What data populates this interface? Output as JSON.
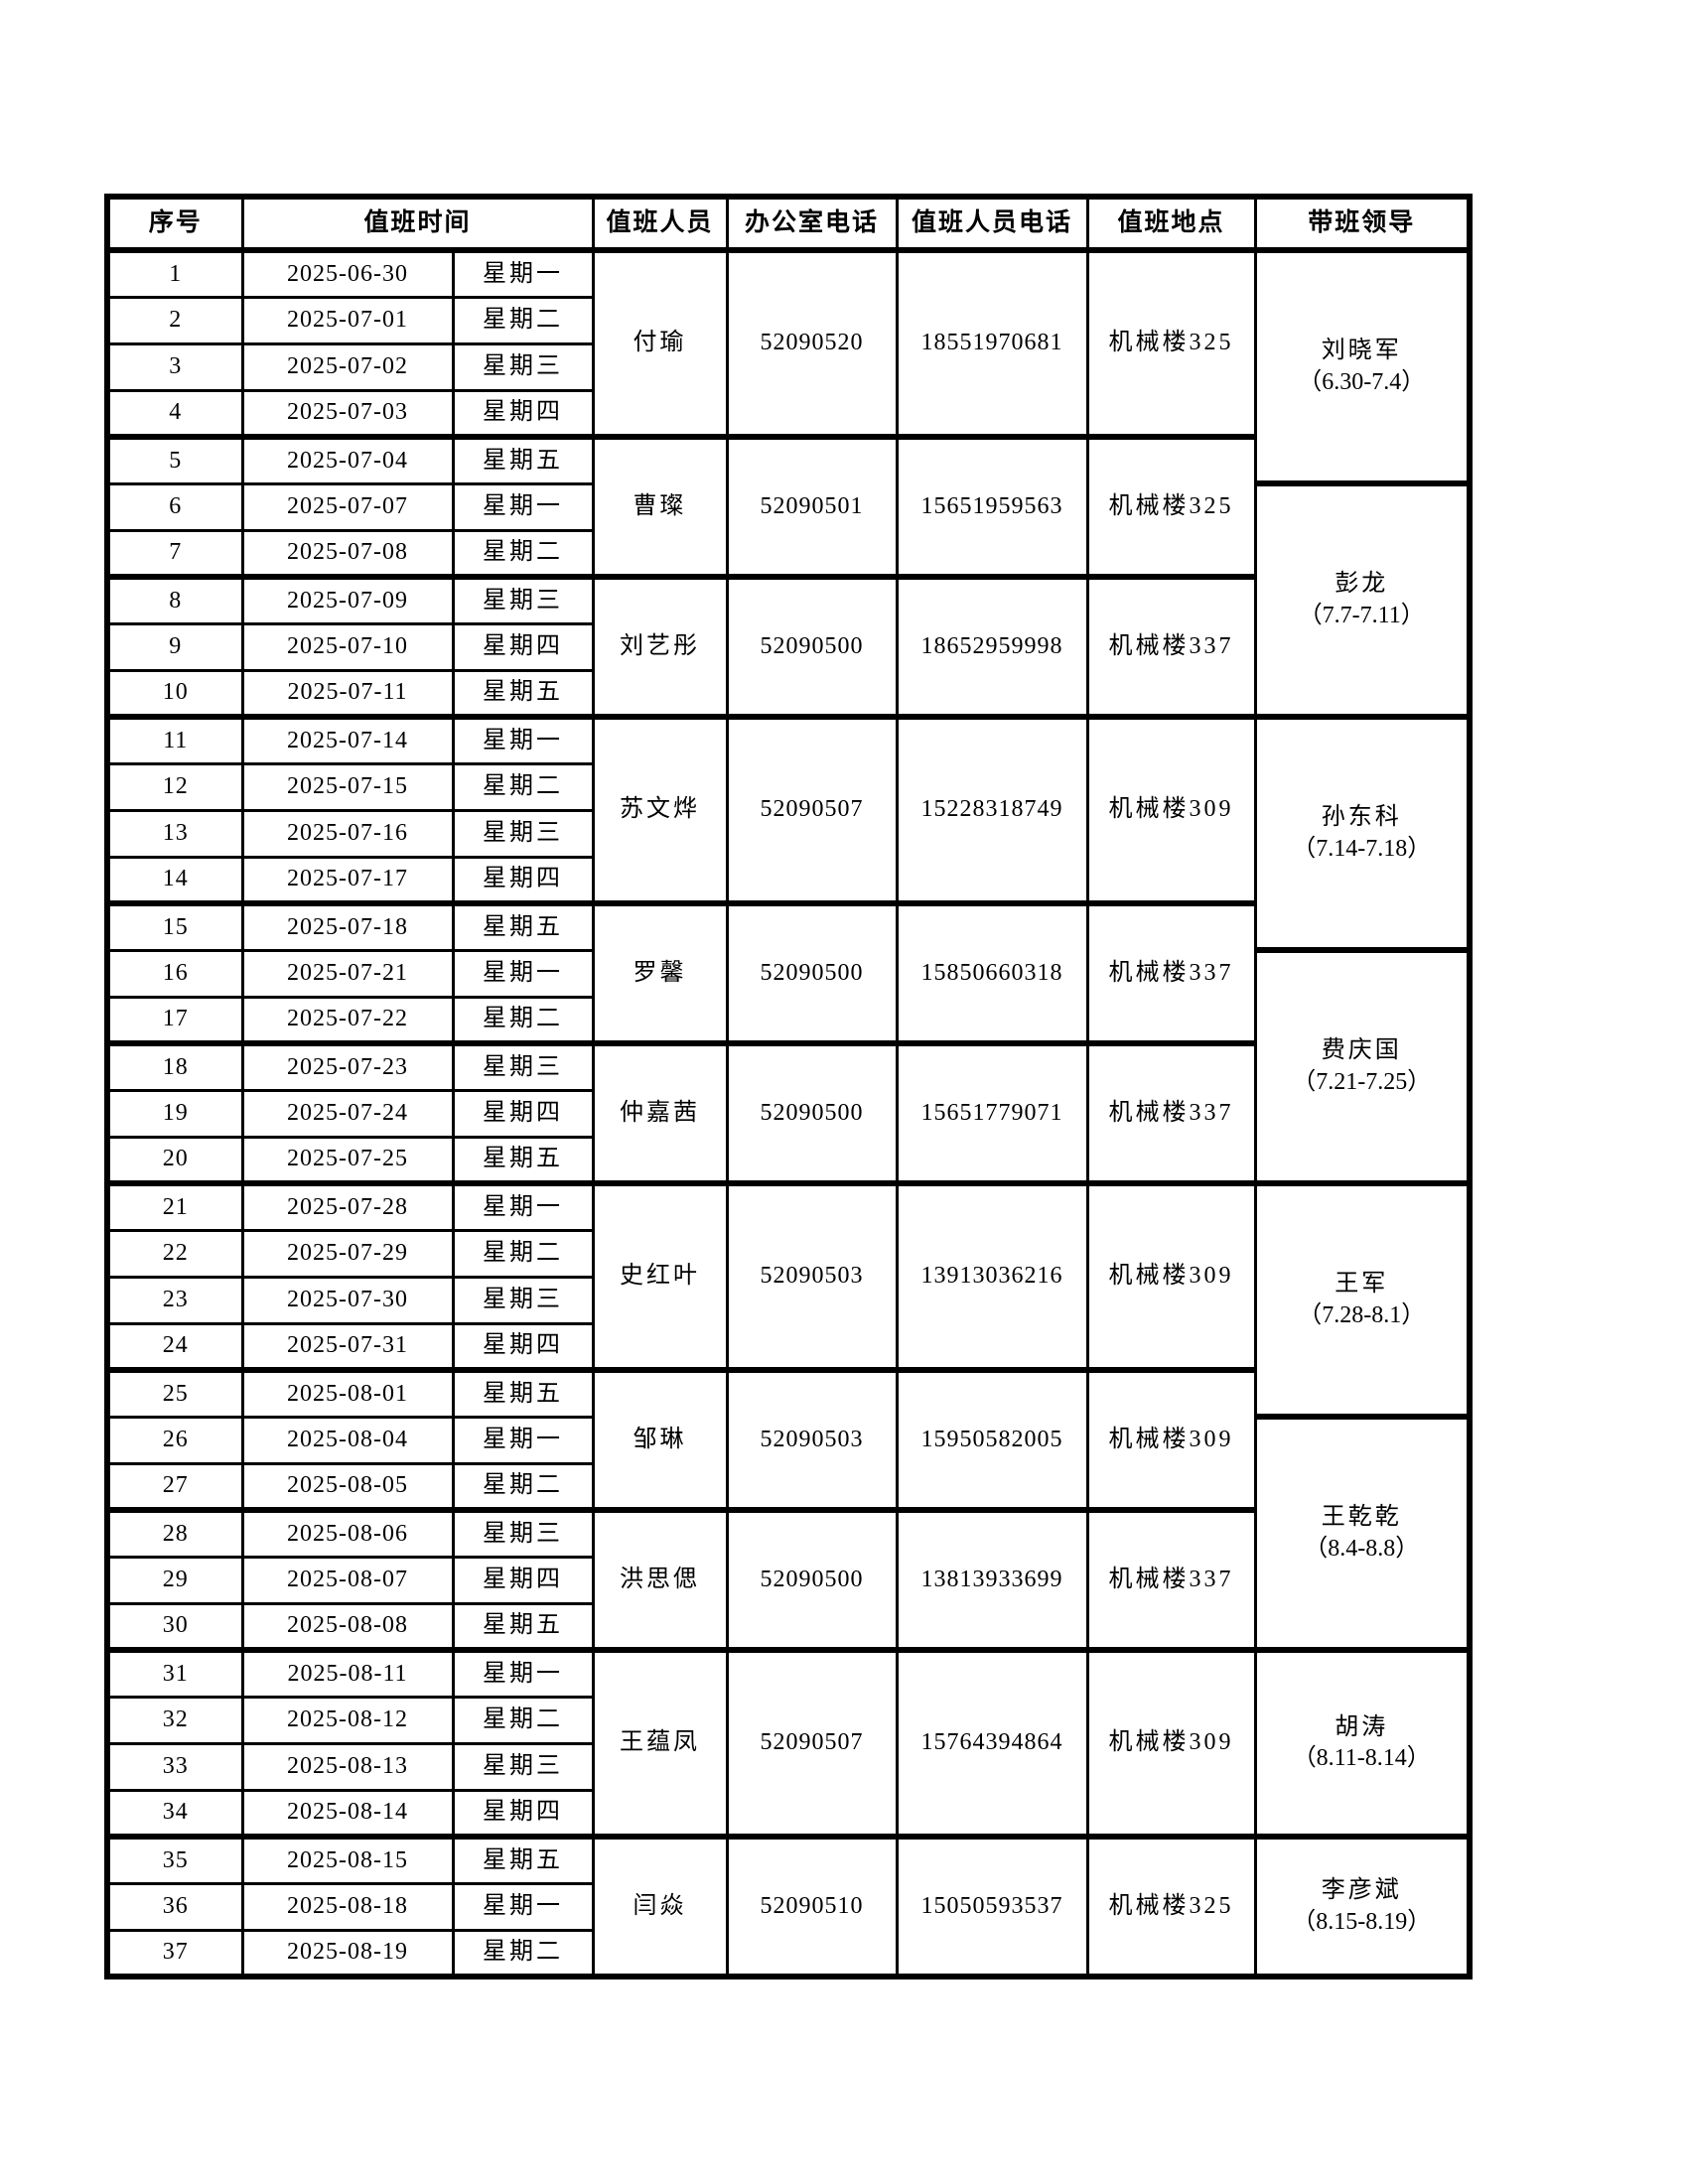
{
  "table": {
    "headers": {
      "index": "序号",
      "time": "值班时间",
      "person": "值班人员",
      "office_phone": "办公室电话",
      "person_phone": "值班人员电话",
      "location": "值班地点",
      "leader": "带班领导"
    },
    "rows": [
      {
        "no": "1",
        "date": "2025-06-30",
        "weekday": "星期一"
      },
      {
        "no": "2",
        "date": "2025-07-01",
        "weekday": "星期二"
      },
      {
        "no": "3",
        "date": "2025-07-02",
        "weekday": "星期三"
      },
      {
        "no": "4",
        "date": "2025-07-03",
        "weekday": "星期四"
      },
      {
        "no": "5",
        "date": "2025-07-04",
        "weekday": "星期五"
      },
      {
        "no": "6",
        "date": "2025-07-07",
        "weekday": "星期一"
      },
      {
        "no": "7",
        "date": "2025-07-08",
        "weekday": "星期二"
      },
      {
        "no": "8",
        "date": "2025-07-09",
        "weekday": "星期三"
      },
      {
        "no": "9",
        "date": "2025-07-10",
        "weekday": "星期四"
      },
      {
        "no": "10",
        "date": "2025-07-11",
        "weekday": "星期五"
      },
      {
        "no": "11",
        "date": "2025-07-14",
        "weekday": "星期一"
      },
      {
        "no": "12",
        "date": "2025-07-15",
        "weekday": "星期二"
      },
      {
        "no": "13",
        "date": "2025-07-16",
        "weekday": "星期三"
      },
      {
        "no": "14",
        "date": "2025-07-17",
        "weekday": "星期四"
      },
      {
        "no": "15",
        "date": "2025-07-18",
        "weekday": "星期五"
      },
      {
        "no": "16",
        "date": "2025-07-21",
        "weekday": "星期一"
      },
      {
        "no": "17",
        "date": "2025-07-22",
        "weekday": "星期二"
      },
      {
        "no": "18",
        "date": "2025-07-23",
        "weekday": "星期三"
      },
      {
        "no": "19",
        "date": "2025-07-24",
        "weekday": "星期四"
      },
      {
        "no": "20",
        "date": "2025-07-25",
        "weekday": "星期五"
      },
      {
        "no": "21",
        "date": "2025-07-28",
        "weekday": "星期一"
      },
      {
        "no": "22",
        "date": "2025-07-29",
        "weekday": "星期二"
      },
      {
        "no": "23",
        "date": "2025-07-30",
        "weekday": "星期三"
      },
      {
        "no": "24",
        "date": "2025-07-31",
        "weekday": "星期四"
      },
      {
        "no": "25",
        "date": "2025-08-01",
        "weekday": "星期五"
      },
      {
        "no": "26",
        "date": "2025-08-04",
        "weekday": "星期一"
      },
      {
        "no": "27",
        "date": "2025-08-05",
        "weekday": "星期二"
      },
      {
        "no": "28",
        "date": "2025-08-06",
        "weekday": "星期三"
      },
      {
        "no": "29",
        "date": "2025-08-07",
        "weekday": "星期四"
      },
      {
        "no": "30",
        "date": "2025-08-08",
        "weekday": "星期五"
      },
      {
        "no": "31",
        "date": "2025-08-11",
        "weekday": "星期一"
      },
      {
        "no": "32",
        "date": "2025-08-12",
        "weekday": "星期二"
      },
      {
        "no": "33",
        "date": "2025-08-13",
        "weekday": "星期三"
      },
      {
        "no": "34",
        "date": "2025-08-14",
        "weekday": "星期四"
      },
      {
        "no": "35",
        "date": "2025-08-15",
        "weekday": "星期五"
      },
      {
        "no": "36",
        "date": "2025-08-18",
        "weekday": "星期一"
      },
      {
        "no": "37",
        "date": "2025-08-19",
        "weekday": "星期二"
      }
    ],
    "groups": [
      {
        "start": 1,
        "span": 4,
        "person": "付瑜",
        "office_phone": "52090520",
        "person_phone": "18551970681",
        "location": "机械楼325"
      },
      {
        "start": 5,
        "span": 3,
        "person": "曹璨",
        "office_phone": "52090501",
        "person_phone": "15651959563",
        "location": "机械楼325"
      },
      {
        "start": 8,
        "span": 3,
        "person": "刘艺彤",
        "office_phone": "52090500",
        "person_phone": "18652959998",
        "location": "机械楼337"
      },
      {
        "start": 11,
        "span": 4,
        "person": "苏文烨",
        "office_phone": "52090507",
        "person_phone": "15228318749",
        "location": "机械楼309"
      },
      {
        "start": 15,
        "span": 3,
        "person": "罗馨",
        "office_phone": "52090500",
        "person_phone": "15850660318",
        "location": "机械楼337"
      },
      {
        "start": 18,
        "span": 3,
        "person": "仲嘉茜",
        "office_phone": "52090500",
        "person_phone": "15651779071",
        "location": "机械楼337"
      },
      {
        "start": 21,
        "span": 4,
        "person": "史红叶",
        "office_phone": "52090503",
        "person_phone": "13913036216",
        "location": "机械楼309"
      },
      {
        "start": 25,
        "span": 3,
        "person": "邹琳",
        "office_phone": "52090503",
        "person_phone": "15950582005",
        "location": "机械楼309"
      },
      {
        "start": 28,
        "span": 3,
        "person": "洪思偲",
        "office_phone": "52090500",
        "person_phone": "13813933699",
        "location": "机械楼337"
      },
      {
        "start": 31,
        "span": 4,
        "person": "王蕴凤",
        "office_phone": "52090507",
        "person_phone": "15764394864",
        "location": "机械楼309"
      },
      {
        "start": 35,
        "span": 3,
        "person": "闫焱",
        "office_phone": "52090510",
        "person_phone": "15050593537",
        "location": "机械楼325"
      }
    ],
    "leaders": [
      {
        "start": 1,
        "span": 5,
        "name": "刘晓军",
        "range": "（6.30-7.4）"
      },
      {
        "start": 6,
        "span": 5,
        "name": "彭龙",
        "range": "（7.7-7.11）"
      },
      {
        "start": 11,
        "span": 5,
        "name": "孙东科",
        "range": "（7.14-7.18）"
      },
      {
        "start": 16,
        "span": 5,
        "name": "费庆国",
        "range": "（7.21-7.25）"
      },
      {
        "start": 21,
        "span": 5,
        "name": "王军",
        "range": "（7.28-8.1）"
      },
      {
        "start": 26,
        "span": 5,
        "name": "王乾乾",
        "range": "（8.4-8.8）"
      },
      {
        "start": 31,
        "span": 4,
        "name": "胡涛",
        "range": "（8.11-8.14）"
      },
      {
        "start": 35,
        "span": 3,
        "name": "李彦斌",
        "range": "（8.15-8.19）"
      }
    ]
  }
}
